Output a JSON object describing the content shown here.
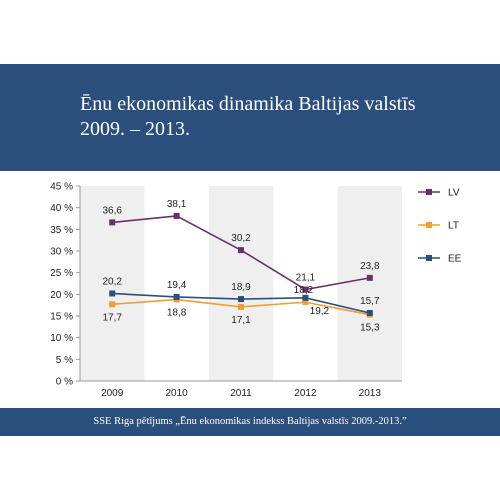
{
  "title_line1": "Ēnu ekonomikas dinamika Baltijas valstīs",
  "title_line2": "2009. – 2013.",
  "source": "SSE Riga pētījums „Ēnu ekonomikas indekss Baltijas valstīs 2009.-2013.”",
  "colors": {
    "banner": "#2b4f7c"
  },
  "chart_data": {
    "type": "line",
    "categories": [
      "2009",
      "2010",
      "2011",
      "2012",
      "2013"
    ],
    "ylim": [
      0,
      45
    ],
    "yticks": [
      0,
      5,
      10,
      15,
      20,
      25,
      30,
      35,
      40,
      45
    ],
    "ytick_labels": [
      "0 %",
      "5 %",
      "10 %",
      "15 %",
      "20 %",
      "25 %",
      "30 %",
      "35 %",
      "40 %",
      "45 %"
    ],
    "grid": false,
    "legend_position": "right",
    "series": [
      {
        "name": "LV",
        "color": "#6b2f6e",
        "marker": "square",
        "values": [
          36.6,
          38.1,
          30.2,
          21.1,
          23.8
        ],
        "labels": [
          "36,6",
          "38,1",
          "30,2",
          "21,1",
          "23,8"
        ]
      },
      {
        "name": "LT",
        "color": "#f39c31",
        "marker": "square",
        "values": [
          17.7,
          18.8,
          17.1,
          18.2,
          15.3
        ],
        "labels": [
          "17,7",
          "18,8",
          "17,1",
          "18,2",
          "15,3"
        ]
      },
      {
        "name": "EE",
        "color": "#2b4f7c",
        "marker": "square",
        "values": [
          20.2,
          19.4,
          18.9,
          19.2,
          15.7
        ],
        "labels": [
          "20,2",
          "19,4",
          "18,9",
          "19,2",
          "15,7"
        ]
      }
    ]
  }
}
